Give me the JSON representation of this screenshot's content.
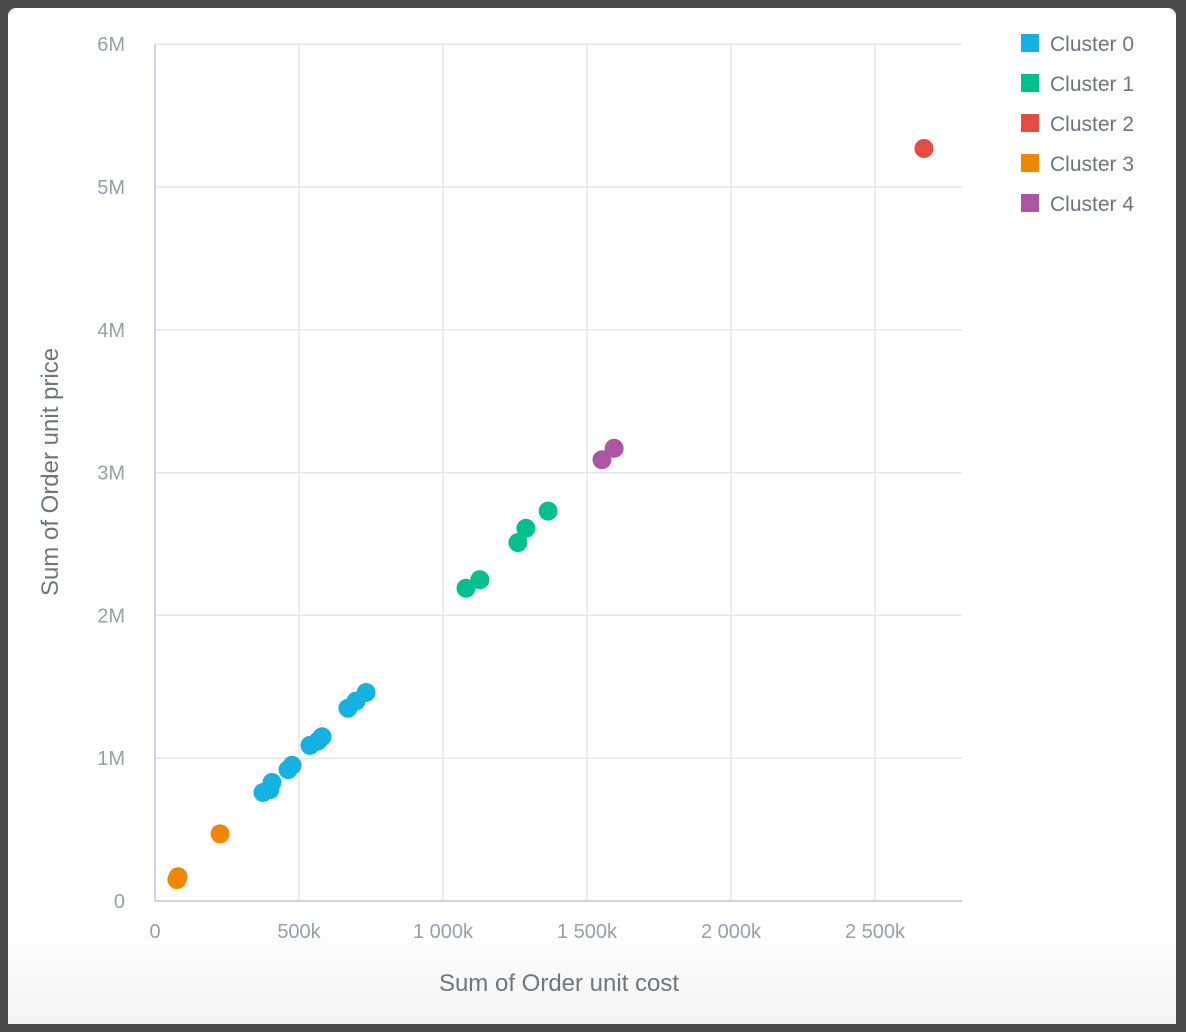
{
  "chart_data": {
    "type": "scatter",
    "title": "",
    "xlabel": "Sum of Order unit cost",
    "ylabel": "Sum of Order unit price",
    "xlim": [
      0,
      2800000
    ],
    "ylim": [
      0,
      6000000
    ],
    "grid": true,
    "legend_position": "top-right",
    "x_ticks": [
      {
        "value": 0,
        "label": "0"
      },
      {
        "value": 500000,
        "label": "500k"
      },
      {
        "value": 1000000,
        "label": "1 000k"
      },
      {
        "value": 1500000,
        "label": "1 500k"
      },
      {
        "value": 2000000,
        "label": "2 000k"
      },
      {
        "value": 2500000,
        "label": "2 500k"
      }
    ],
    "y_ticks": [
      {
        "value": 0,
        "label": "0"
      },
      {
        "value": 1000000,
        "label": "1M"
      },
      {
        "value": 2000000,
        "label": "2M"
      },
      {
        "value": 3000000,
        "label": "3M"
      },
      {
        "value": 4000000,
        "label": "4M"
      },
      {
        "value": 5000000,
        "label": "5M"
      },
      {
        "value": 6000000,
        "label": "6M"
      }
    ],
    "series": [
      {
        "name": "Cluster 0",
        "color": "#14b2e2",
        "points": [
          [
            375000,
            760000
          ],
          [
            399000,
            780000
          ],
          [
            406000,
            830000
          ],
          [
            462000,
            920000
          ],
          [
            476000,
            950000
          ],
          [
            538000,
            1090000
          ],
          [
            566000,
            1120000
          ],
          [
            580000,
            1150000
          ],
          [
            670000,
            1350000
          ],
          [
            698000,
            1400000
          ],
          [
            733000,
            1460000
          ]
        ]
      },
      {
        "name": "Cluster 1",
        "color": "#00c18d",
        "points": [
          [
            1080000,
            2190000
          ],
          [
            1128000,
            2250000
          ],
          [
            1260000,
            2510000
          ],
          [
            1288000,
            2610000
          ],
          [
            1365000,
            2730000
          ]
        ]
      },
      {
        "name": "Cluster 2",
        "color": "#e54d42",
        "points": [
          [
            2670000,
            5270000
          ]
        ]
      },
      {
        "name": "Cluster 3",
        "color": "#f18600",
        "points": [
          [
            76000,
            150000
          ],
          [
            80000,
            170000
          ],
          [
            226000,
            470000
          ]
        ]
      },
      {
        "name": "Cluster 4",
        "color": "#ab55a3",
        "points": [
          [
            1552000,
            3090000
          ],
          [
            1594000,
            3170000
          ]
        ]
      }
    ]
  }
}
